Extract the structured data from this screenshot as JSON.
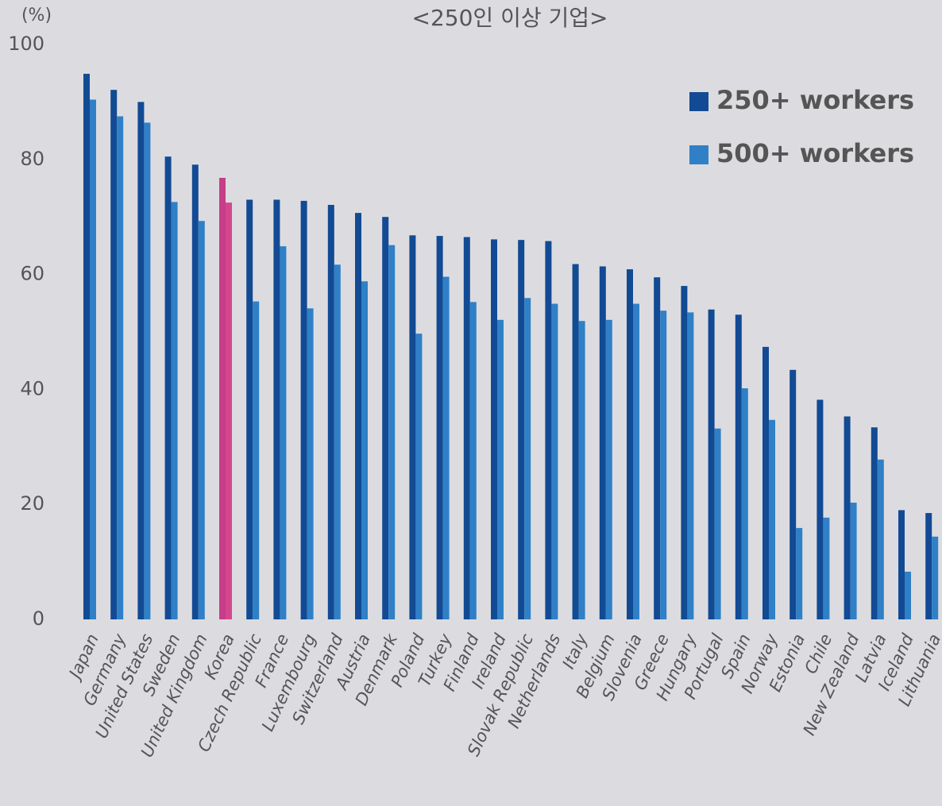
{
  "chart_data": {
    "type": "bar",
    "title": "<250인 이상 기업>",
    "y_label": "(%)",
    "categories": [
      "Japan",
      "Germany",
      "United States",
      "Sweden",
      "United Kingdom",
      "Korea",
      "Czech Republic",
      "France",
      "Luxembourg",
      "Switzerland",
      "Austria",
      "Denmark",
      "Poland",
      "Turkey",
      "Finland",
      "Ireland",
      "Slovak Republic",
      "Netherlands",
      "Italy",
      "Belgium",
      "Slovenia",
      "Greece",
      "Hungary",
      "Portugal",
      "Spain",
      "Norway",
      "Estonia",
      "Chile",
      "New Zealand",
      "Latvia",
      "Iceland",
      "Lithuania"
    ],
    "series": [
      {
        "name": "250+ workers",
        "color": "#124a94",
        "values": [
          94.9,
          92.1,
          90.0,
          80.5,
          79.1,
          76.8,
          73.0,
          73.0,
          72.8,
          72.1,
          70.7,
          70.0,
          66.8,
          66.7,
          66.5,
          66.1,
          66.0,
          65.8,
          61.8,
          61.4,
          60.9,
          59.5,
          58.0,
          53.9,
          53.0,
          47.4,
          43.4,
          38.2,
          35.3,
          33.4,
          19.0,
          18.5
        ]
      },
      {
        "name": "500+ workers",
        "color": "#2f80c6",
        "values": [
          90.4,
          87.5,
          86.4,
          72.6,
          69.3,
          72.5,
          55.3,
          64.9,
          54.1,
          61.7,
          58.8,
          65.1,
          49.7,
          59.6,
          55.2,
          52.1,
          55.9,
          54.9,
          51.9,
          52.1,
          54.9,
          53.7,
          53.4,
          33.2,
          40.2,
          34.7,
          15.9,
          17.7,
          20.3,
          27.8,
          8.3,
          14.4
        ]
      }
    ],
    "highlight": {
      "category": "Korea",
      "colors": [
        "#c63d89",
        "#d4478f"
      ]
    },
    "ylim": [
      0,
      100
    ],
    "yticks": [
      0,
      20,
      40,
      60,
      80,
      100
    ],
    "grid": false,
    "legend_position": "upper right"
  }
}
